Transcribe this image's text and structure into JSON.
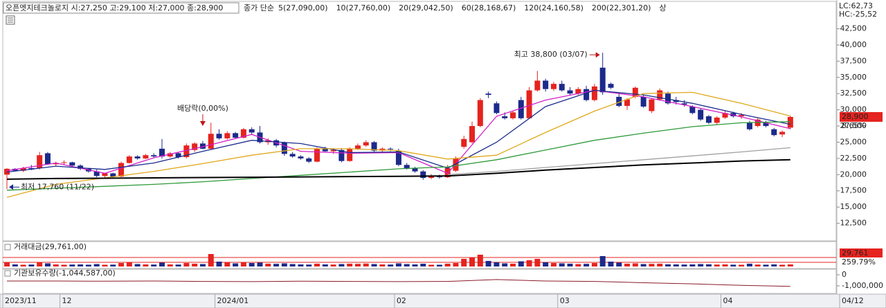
{
  "header": {
    "title": "오픈엣지테크놀로지 시:27,250 고:29,100 저:27,000 종:28,900",
    "extra": "상"
  },
  "chart_data": [
    {
      "type": "candlestick",
      "categories": [
        "2023/11",
        null,
        null,
        null,
        null,
        null,
        null,
        "12",
        null,
        null,
        null,
        null,
        null,
        null,
        null,
        null,
        null,
        null,
        null,
        null,
        null,
        null,
        null,
        null,
        null,
        null,
        "2024/01",
        null,
        null,
        null,
        null,
        null,
        null,
        null,
        null,
        null,
        null,
        null,
        null,
        null,
        null,
        null,
        null,
        null,
        null,
        null,
        null,
        null,
        "02",
        null,
        null,
        null,
        null,
        null,
        null,
        null,
        null,
        null,
        null,
        null,
        null,
        null,
        null,
        null,
        null,
        null,
        null,
        null,
        "03",
        null,
        null,
        null,
        null,
        null,
        null,
        null,
        null,
        null,
        null,
        null,
        null,
        null,
        null,
        null,
        null,
        null,
        null,
        null,
        "04",
        null,
        null,
        null,
        null,
        null,
        null,
        null,
        "04/12"
      ],
      "open": [
        20000,
        20900,
        20600,
        21000,
        21000,
        23300,
        21600,
        21800,
        21900,
        21400,
        20900,
        20500,
        19800,
        20200,
        19700,
        21800,
        22800,
        22500,
        23000,
        24000,
        22800,
        23300,
        22700,
        23800,
        24800,
        24000,
        26300,
        25600,
        26400,
        25700,
        27000,
        26500,
        25000,
        25300,
        25000,
        23200,
        22800,
        22500,
        22000,
        24000,
        23600,
        23800,
        22100,
        24000,
        24500,
        25000,
        23700,
        24000,
        23700,
        21500,
        21000,
        20500,
        19500,
        19800,
        19600,
        20600,
        24300,
        25000,
        27500,
        32500,
        31000,
        29000,
        28700,
        31500,
        28700,
        33000,
        34500,
        33200,
        34000,
        33000,
        32500,
        33200,
        31500,
        36500,
        34000,
        32000,
        30600,
        32000,
        32000,
        29800,
        31600,
        32500,
        31500,
        31000,
        30500,
        30000,
        29000,
        28000,
        28800,
        29500,
        29000,
        28000,
        27500,
        28000,
        27000,
        26200,
        27250
      ],
      "high": [
        21000,
        21000,
        21200,
        21500,
        23500,
        23500,
        22000,
        22200,
        22000,
        21600,
        21000,
        20800,
        20300,
        20300,
        22000,
        23000,
        23000,
        23200,
        23300,
        25500,
        23500,
        23500,
        24800,
        25000,
        25200,
        28000,
        27000,
        26700,
        26600,
        27200,
        27300,
        27500,
        25600,
        25500,
        25100,
        23500,
        23000,
        22700,
        24200,
        24300,
        24000,
        24100,
        24200,
        24800,
        25300,
        25200,
        24200,
        24200,
        24000,
        21800,
        21200,
        20700,
        20100,
        20000,
        21500,
        22800,
        26000,
        28200,
        31800,
        32800,
        31300,
        29600,
        29800,
        32000,
        33500,
        36000,
        34800,
        34300,
        34500,
        33500,
        33500,
        33700,
        34000,
        38800,
        34200,
        32500,
        31800,
        33600,
        32300,
        31800,
        33300,
        32800,
        32000,
        31500,
        30700,
        30300,
        29200,
        29000,
        29800,
        29700,
        29500,
        28300,
        28700,
        28300,
        27200,
        26800,
        29100
      ],
      "low": [
        17760,
        20500,
        20400,
        20700,
        20800,
        21500,
        21300,
        21500,
        21300,
        20700,
        20300,
        19600,
        19500,
        19500,
        19600,
        21700,
        22300,
        22400,
        22600,
        22500,
        22600,
        22500,
        22500,
        23500,
        23900,
        23800,
        25400,
        25400,
        25500,
        25600,
        26200,
        24800,
        24600,
        24200,
        22900,
        22600,
        22300,
        21800,
        21900,
        23400,
        23200,
        21900,
        22000,
        23800,
        24300,
        23500,
        23400,
        23600,
        21300,
        20800,
        20300,
        19200,
        19300,
        19400,
        19500,
        20400,
        24000,
        24800,
        27300,
        31800,
        29300,
        28500,
        28500,
        28500,
        28600,
        32800,
        32800,
        32900,
        32800,
        32300,
        32300,
        31300,
        31300,
        32300,
        33200,
        30400,
        30000,
        31800,
        30300,
        29500,
        31400,
        30800,
        30800,
        30500,
        29300,
        28300,
        27800,
        27700,
        28600,
        28800,
        28600,
        26800,
        27300,
        27300,
        25900,
        25800,
        27000
      ],
      "close": [
        20900,
        20600,
        21000,
        20800,
        23000,
        21600,
        21800,
        21900,
        21400,
        20900,
        20500,
        19800,
        20200,
        19700,
        21800,
        22800,
        22500,
        23000,
        22800,
        22800,
        23300,
        22700,
        24500,
        24800,
        24000,
        26300,
        25600,
        26400,
        25700,
        27000,
        26500,
        25000,
        25300,
        24500,
        23200,
        22800,
        22500,
        22000,
        24000,
        23600,
        23800,
        22100,
        24000,
        24500,
        25000,
        23700,
        24000,
        23900,
        21500,
        21000,
        20500,
        19500,
        19800,
        19600,
        21000,
        22500,
        25500,
        27500,
        31500,
        32300,
        29500,
        28700,
        29600,
        28700,
        33000,
        34500,
        33200,
        34000,
        33000,
        32500,
        33200,
        31500,
        33600,
        32700,
        33400,
        30600,
        31600,
        33400,
        30500,
        31600,
        33000,
        31000,
        31200,
        30800,
        29500,
        28500,
        28000,
        28800,
        29500,
        29000,
        29200,
        27000,
        28500,
        27500,
        26100,
        26600,
        28900
      ],
      "up_color": "#e5231f",
      "down_color": "#1c2a8a",
      "ylim": [
        10000,
        44800
      ],
      "yticks": [
        {
          "value": 12500,
          "label": "12,500"
        },
        {
          "value": 15000,
          "label": "15,000"
        },
        {
          "value": 17500,
          "label": "17,500"
        },
        {
          "value": 20000,
          "label": "20,000"
        },
        {
          "value": 22500,
          "label": "22,500"
        },
        {
          "value": 25000,
          "label": "25,000"
        },
        {
          "value": 27500,
          "label": "27,500"
        },
        {
          "value": 30000,
          "label": "30,000"
        },
        {
          "value": 32500,
          "label": "32,500"
        },
        {
          "value": 35000,
          "label": "35,000"
        },
        {
          "value": 37500,
          "label": "37,500"
        },
        {
          "value": 40000,
          "label": "40,000"
        },
        {
          "value": 42500,
          "label": "42,500"
        }
      ],
      "ma_label": "종가 단순",
      "series": [
        {
          "name": "5(27,090,00)",
          "color": "#d21ec8",
          "x": [
            0,
            6,
            12,
            18,
            24,
            30,
            36,
            42,
            48,
            54,
            60,
            66,
            72,
            78,
            84,
            90,
            96
          ],
          "values": [
            20600,
            21800,
            20200,
            22600,
            24300,
            26200,
            23600,
            23300,
            23400,
            20200,
            29000,
            31500,
            33000,
            32000,
            30500,
            28900,
            27090
          ]
        },
        {
          "name": "10(27,760,00)",
          "color": "#1a2c8c",
          "x": [
            0,
            6,
            12,
            18,
            24,
            30,
            36,
            42,
            48,
            54,
            60,
            66,
            72,
            78,
            84,
            90,
            96
          ],
          "values": [
            20400,
            21300,
            20800,
            21800,
            23600,
            25300,
            24800,
            23400,
            23500,
            21000,
            25000,
            30500,
            33000,
            32300,
            31000,
            29300,
            27760
          ]
        },
        {
          "name": "20(29,042,50)",
          "color": "#e0a81c",
          "x": [
            0,
            6,
            12,
            18,
            24,
            30,
            36,
            42,
            48,
            54,
            60,
            66,
            72,
            78,
            84,
            90,
            96
          ],
          "values": [
            16500,
            18500,
            19500,
            20500,
            21700,
            23000,
            24000,
            24000,
            23700,
            22400,
            23000,
            26500,
            29800,
            32500,
            32700,
            31000,
            29042
          ]
        },
        {
          "name": "60(28,168,67)",
          "color": "#2e9a3a",
          "x": [
            0,
            6,
            12,
            18,
            24,
            30,
            36,
            42,
            48,
            54,
            60,
            66,
            72,
            78,
            84,
            90,
            96
          ],
          "values": [
            17600,
            17900,
            18200,
            18500,
            18900,
            19400,
            19900,
            20400,
            20900,
            21200,
            22300,
            23800,
            25300,
            26400,
            27400,
            28000,
            28168
          ]
        },
        {
          "name": "120(24,160,58)",
          "color": "#a0a0a0",
          "x": [
            54,
            60,
            66,
            72,
            78,
            84,
            90,
            96
          ],
          "values": [
            20000,
            20500,
            21100,
            21700,
            22300,
            22900,
            23500,
            24160
          ]
        },
        {
          "name": "200(22,301,20)",
          "color": "#000000",
          "x": [
            0,
            6,
            12,
            18,
            24,
            30,
            36,
            42,
            48,
            54,
            60,
            66,
            72,
            78,
            84,
            90,
            96
          ],
          "values": [
            19300,
            19400,
            19450,
            19500,
            19550,
            19600,
            19650,
            19700,
            19750,
            19800,
            20200,
            20700,
            21100,
            21500,
            21800,
            22100,
            22301
          ]
        }
      ],
      "annotations": {
        "high": "최고 38,800 (03/07)",
        "low": "최저 17,760 (11/22)",
        "dividend": "배당락(0,00%)"
      },
      "lc": "LC:62,73",
      "hc": "HC:-25,52",
      "last_label": "28,900",
      "change_label": "8.65%"
    },
    {
      "type": "bar",
      "title": "거래대금(29,761,00)",
      "values": [
        60000,
        30000,
        25000,
        28000,
        55000,
        45000,
        30000,
        25000,
        28000,
        30000,
        26000,
        35000,
        25000,
        27000,
        50000,
        60000,
        35000,
        30000,
        28000,
        55000,
        30000,
        28000,
        50000,
        40000,
        35000,
        180000,
        70000,
        55000,
        45000,
        60000,
        50000,
        55000,
        40000,
        38000,
        45000,
        35000,
        30000,
        28000,
        40000,
        30000,
        28000,
        35000,
        40000,
        38000,
        42000,
        35000,
        30000,
        28000,
        45000,
        35000,
        30000,
        40000,
        25000,
        25000,
        40000,
        50000,
        110000,
        130000,
        170000,
        80000,
        60000,
        45000,
        40000,
        75000,
        90000,
        110000,
        60000,
        50000,
        45000,
        40000,
        35000,
        38000,
        50000,
        150000,
        70000,
        55000,
        40000,
        45000,
        35000,
        38000,
        40000,
        32000,
        30000,
        28000,
        30000,
        35000,
        32000,
        28000,
        30000,
        26000,
        25000,
        40000,
        28000,
        26000,
        30000,
        25000,
        29761
      ],
      "ylim": [
        0,
        200000
      ],
      "last_label": "29,761",
      "ratio_label": "259.79%"
    },
    {
      "type": "line",
      "title": "기관보유수량(-1,044,587,00)",
      "color": "#8b1a2b",
      "x": [
        0,
        6,
        12,
        18,
        24,
        30,
        36,
        42,
        48,
        54,
        60,
        66,
        72,
        78,
        84,
        90,
        96
      ],
      "values": [
        -560000,
        -560000,
        -580000,
        -560000,
        -600000,
        -620000,
        -580000,
        -600000,
        -620000,
        -600000,
        -430000,
        -560000,
        -600000,
        -720000,
        -820000,
        -950000,
        -1044587
      ],
      "ylim": [
        -1625000,
        375000
      ],
      "yticks": [
        0,
        {
          "value": -1000000,
          "label": "-1,000,000"
        }
      ]
    }
  ]
}
